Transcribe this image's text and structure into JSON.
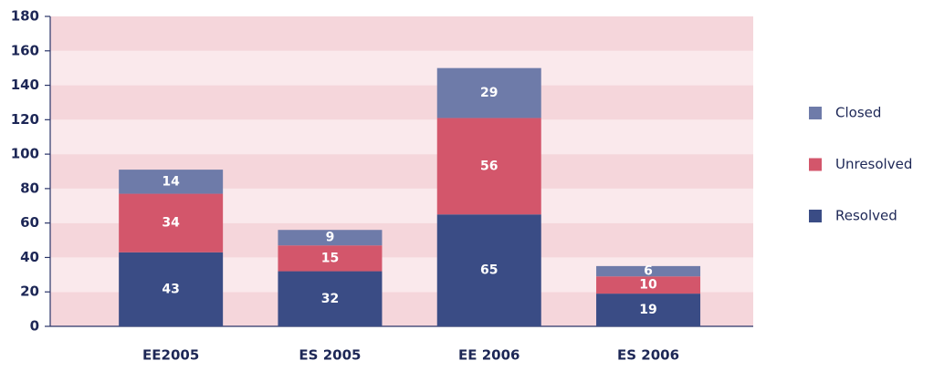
{
  "chart_data": {
    "type": "bar",
    "stacked": true,
    "categories": [
      "EE2005",
      "ES 2005",
      "EE 2006",
      "ES 2006"
    ],
    "series": [
      {
        "name": "Resolved",
        "color": "#3a4c85",
        "values": [
          43,
          32,
          65,
          19
        ]
      },
      {
        "name": "Unresolved",
        "color": "#d3566b",
        "values": [
          34,
          15,
          56,
          10
        ]
      },
      {
        "name": "Closed",
        "color": "#6e7ba9",
        "values": [
          14,
          9,
          29,
          6
        ]
      }
    ],
    "ylim": [
      0,
      180
    ],
    "yticks": [
      0,
      20,
      40,
      60,
      80,
      100,
      120,
      140,
      160,
      180
    ],
    "legend": "right"
  }
}
